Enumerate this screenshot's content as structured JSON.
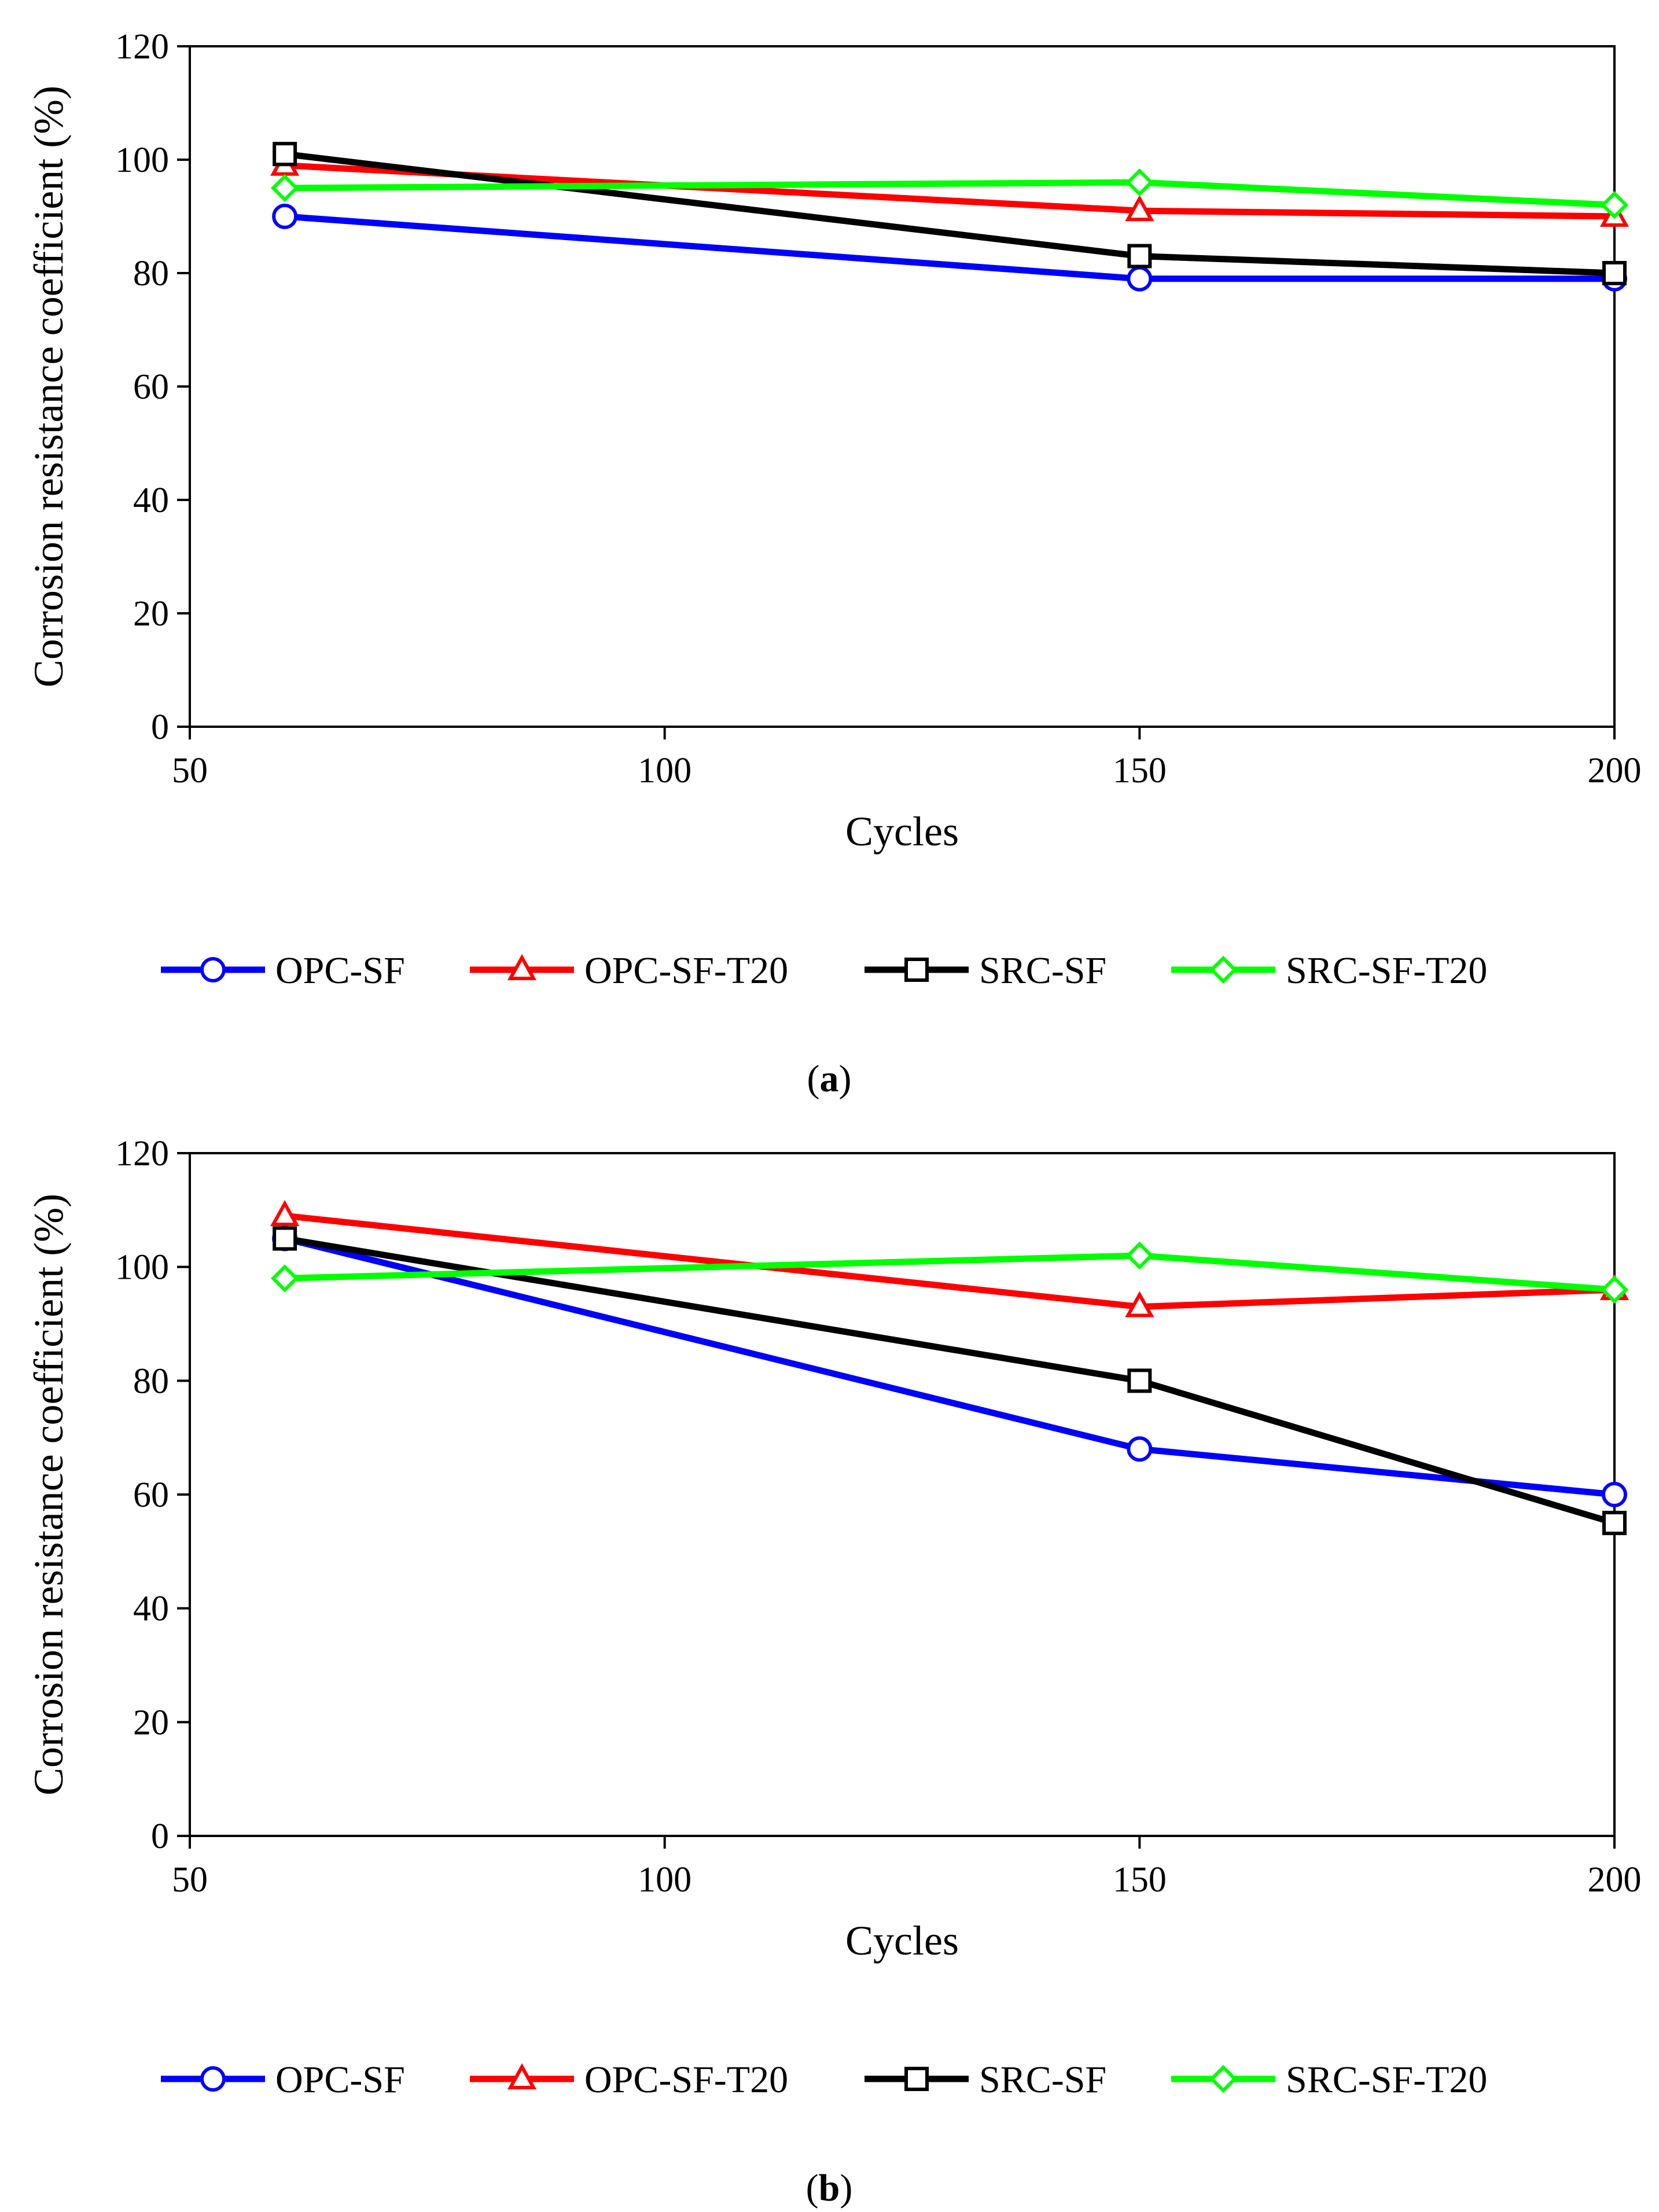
{
  "chart_data": [
    {
      "type": "line",
      "panel_label": "a",
      "xlabel": "Cycles",
      "ylabel": "Corrosion resistance coefficient (%)",
      "xlim": [
        50,
        200
      ],
      "ylim": [
        0,
        120
      ],
      "xticks": [
        50,
        100,
        150,
        200
      ],
      "yticks": [
        0,
        20,
        40,
        60,
        80,
        100,
        120
      ],
      "x": [
        60,
        150,
        200
      ],
      "grid": false,
      "legend_position": "bottom",
      "series": [
        {
          "name": "OPC-SF",
          "values": [
            90,
            79,
            79
          ],
          "color": "#0000ff",
          "marker": "circle"
        },
        {
          "name": "OPC-SF-T20",
          "values": [
            99,
            91,
            90
          ],
          "color": "#ff0000",
          "marker": "triangle"
        },
        {
          "name": "SRC-SF",
          "values": [
            101,
            83,
            80
          ],
          "color": "#000000",
          "marker": "square"
        },
        {
          "name": "SRC-SF-T20",
          "values": [
            95,
            96,
            92
          ],
          "color": "#00ff00",
          "marker": "diamond"
        }
      ]
    },
    {
      "type": "line",
      "panel_label": "b",
      "xlabel": "Cycles",
      "ylabel": "Corrosion resistance coefficient (%)",
      "xlim": [
        50,
        200
      ],
      "ylim": [
        0,
        120
      ],
      "xticks": [
        50,
        100,
        150,
        200
      ],
      "yticks": [
        0,
        20,
        40,
        60,
        80,
        100,
        120
      ],
      "x": [
        60,
        150,
        200
      ],
      "grid": false,
      "legend_position": "bottom",
      "series": [
        {
          "name": "OPC-SF",
          "values": [
            105,
            68,
            60
          ],
          "color": "#0000ff",
          "marker": "circle"
        },
        {
          "name": "OPC-SF-T20",
          "values": [
            109,
            93,
            96
          ],
          "color": "#ff0000",
          "marker": "triangle"
        },
        {
          "name": "SRC-SF",
          "values": [
            105,
            80,
            55
          ],
          "color": "#000000",
          "marker": "square"
        },
        {
          "name": "SRC-SF-T20",
          "values": [
            98,
            102,
            96
          ],
          "color": "#00ff00",
          "marker": "diamond"
        }
      ]
    }
  ]
}
